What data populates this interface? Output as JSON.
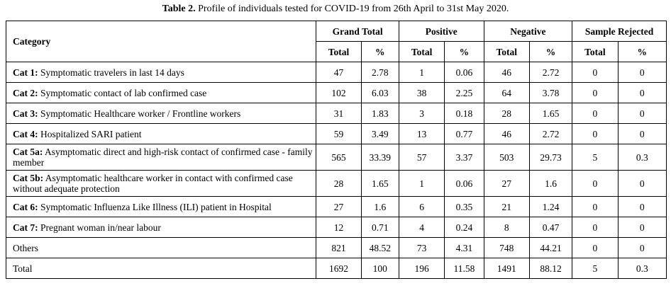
{
  "caption": {
    "label": "Table 2.",
    "text": " Profile of individuals tested for COVID-19 from 26th April to 31st May 2020."
  },
  "header": {
    "category": "Category",
    "groups": [
      "Grand Total",
      "Positive",
      "Negative",
      "Sample Rejected"
    ],
    "sub": [
      "Total",
      "%",
      "Total",
      "%",
      "Total",
      "%",
      "Total",
      "%"
    ]
  },
  "rows": [
    {
      "code": "Cat 1:",
      "desc": " Symptomatic travelers in last 14 days",
      "cells": [
        "47",
        "2.78",
        "1",
        "0.06",
        "46",
        "2.72",
        "0",
        "0"
      ]
    },
    {
      "code": "Cat 2:",
      "desc": " Symptomatic contact of lab confirmed case",
      "cells": [
        "102",
        "6.03",
        "38",
        "2.25",
        "64",
        "3.78",
        "0",
        "0"
      ]
    },
    {
      "code": "Cat 3:",
      "desc": " Symptomatic Healthcare worker / Frontline workers",
      "cells": [
        "31",
        "1.83",
        "3",
        "0.18",
        "28",
        "1.65",
        "0",
        "0"
      ]
    },
    {
      "code": "Cat 4:",
      "desc": " Hospitalized SARI patient",
      "cells": [
        "59",
        "3.49",
        "13",
        "0.77",
        "46",
        "2.72",
        "0",
        "0"
      ]
    },
    {
      "code": "Cat 5a:",
      "desc": " Asymptomatic direct and high-risk contact of confirmed case - family member",
      "cells": [
        "565",
        "33.39",
        "57",
        "3.37",
        "503",
        "29.73",
        "5",
        "0.3"
      ]
    },
    {
      "code": "Cat 5b:",
      "desc": " Asymptomatic healthcare worker in contact with confirmed case without adequate protection",
      "cells": [
        "28",
        "1.65",
        "1",
        "0.06",
        "27",
        "1.6",
        "0",
        "0"
      ]
    },
    {
      "code": "Cat 6:",
      "desc": " Symptomatic Influenza Like Illness (ILI) patient in Hospital",
      "cells": [
        "27",
        "1.6",
        "6",
        "0.35",
        "21",
        "1.24",
        "0",
        "0"
      ]
    },
    {
      "code": "Cat 7:",
      "desc": " Pregnant woman in/near labour",
      "cells": [
        "12",
        "0.71",
        "4",
        "0.24",
        "8",
        "0.47",
        "0",
        "0"
      ]
    },
    {
      "code": "",
      "desc": "Others",
      "cells": [
        "821",
        "48.52",
        "73",
        "4.31",
        "748",
        "44.21",
        "0",
        "0"
      ]
    },
    {
      "code": "",
      "desc": "Total",
      "cells": [
        "1692",
        "100",
        "196",
        "11.58",
        "1491",
        "88.12",
        "5",
        "0.3"
      ]
    }
  ]
}
